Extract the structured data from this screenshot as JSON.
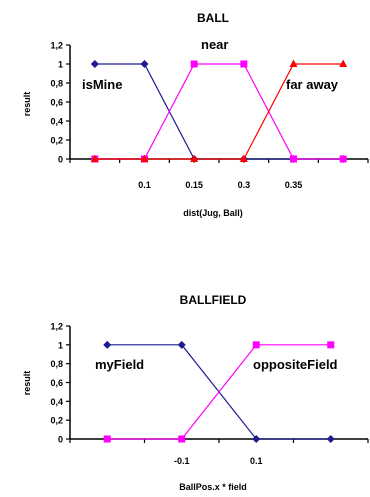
{
  "chart_data": [
    {
      "type": "line",
      "title": "BALL",
      "xlabel": "dist(Jug, Ball)",
      "ylabel": "result",
      "ylim": [
        0,
        1.2
      ],
      "yticks": [
        "1,2",
        "1",
        "0,8",
        "0,6",
        "0,4",
        "0,2",
        "0"
      ],
      "categories": [
        "",
        "0.1",
        "0.15",
        "0.3",
        "0.35",
        ""
      ],
      "series": [
        {
          "name": "isMine",
          "color": "#1c1c8c",
          "marker": "diamond",
          "values": [
            1,
            1,
            0,
            0,
            0,
            0
          ]
        },
        {
          "name": "near",
          "color": "#ff00ff",
          "marker": "square",
          "values": [
            0,
            0,
            1,
            1,
            0,
            0
          ]
        },
        {
          "name": "far away",
          "color": "#ff0000",
          "marker": "triangle",
          "values": [
            0,
            0,
            0,
            0,
            1,
            1
          ]
        }
      ]
    },
    {
      "type": "line",
      "title": "BALLFIELD",
      "xlabel": "BallPos.x * field",
      "ylabel": "result",
      "ylim": [
        0,
        1.2
      ],
      "yticks": [
        "1,2",
        "1",
        "0,8",
        "0,6",
        "0,4",
        "0,2",
        "0"
      ],
      "categories": [
        "",
        "-0.1",
        "0.1",
        ""
      ],
      "series": [
        {
          "name": "myField",
          "color": "#1c1c8c",
          "marker": "diamond",
          "values": [
            1,
            1,
            0,
            0
          ]
        },
        {
          "name": "oppositeField",
          "color": "#ff00ff",
          "marker": "square",
          "values": [
            0,
            0,
            1,
            1
          ]
        }
      ]
    }
  ]
}
